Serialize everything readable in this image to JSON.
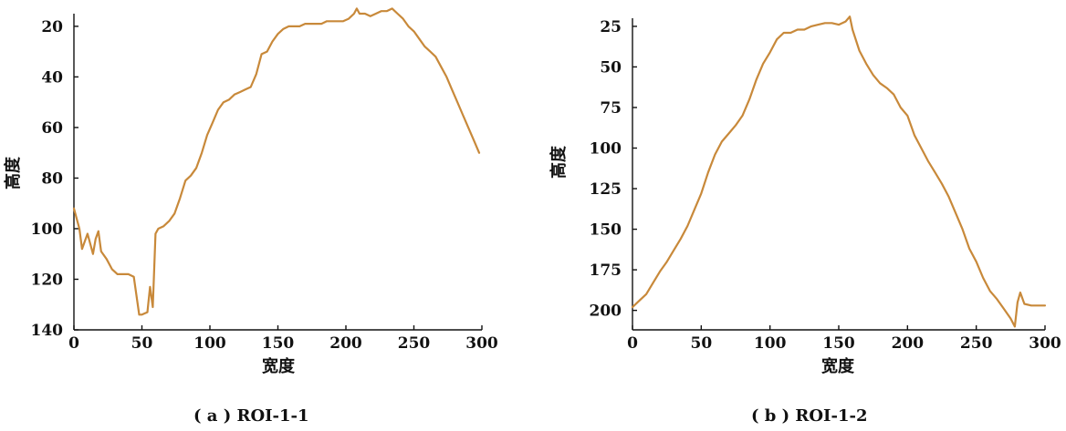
{
  "chart_data": [
    {
      "type": "line",
      "title": "",
      "caption": "( a ) ROI-1-1",
      "xlabel": "宽度",
      "ylabel": "高度",
      "xlim": [
        0,
        300
      ],
      "ylim": [
        140,
        15
      ],
      "y_inverted": true,
      "grid": false,
      "xticks": [
        0,
        50,
        100,
        150,
        200,
        250,
        300
      ],
      "yticks": [
        20,
        40,
        60,
        80,
        100,
        120,
        140
      ],
      "color": "#c8893a",
      "series": [
        {
          "x": [
            0,
            4,
            6,
            10,
            14,
            16,
            18,
            20,
            24,
            28,
            32,
            36,
            40,
            44,
            48,
            50,
            54,
            56,
            58,
            60,
            62,
            66,
            70,
            74,
            78,
            82,
            86,
            90,
            94,
            98,
            102,
            106,
            110,
            114,
            118,
            122,
            126,
            130,
            134,
            138,
            142,
            146,
            150,
            154,
            158,
            162,
            166,
            170,
            174,
            178,
            182,
            186,
            190,
            194,
            198,
            202,
            206,
            208,
            210,
            214,
            218,
            222,
            226,
            230,
            234,
            238,
            242,
            246,
            250,
            254,
            258,
            262,
            266,
            270,
            274,
            278,
            282,
            286,
            290,
            294,
            298
          ],
          "y": [
            92,
            100,
            108,
            102,
            110,
            104,
            101,
            109,
            112,
            116,
            118,
            118,
            118,
            119,
            134,
            134,
            133,
            123,
            131,
            102,
            100,
            99,
            97,
            94,
            88,
            81,
            79,
            76,
            70,
            63,
            58,
            53,
            50,
            49,
            47,
            46,
            45,
            44,
            39,
            31,
            30,
            26,
            23,
            21,
            20,
            20,
            20,
            19,
            19,
            19,
            19,
            18,
            18,
            18,
            18,
            17,
            15,
            13,
            15,
            15,
            16,
            15,
            14,
            14,
            13,
            15,
            17,
            20,
            22,
            25,
            28,
            30,
            32,
            36,
            40,
            45,
            50,
            55,
            60,
            65,
            70
          ]
        }
      ]
    },
    {
      "type": "line",
      "title": "",
      "caption": "( b ) ROI-1-2",
      "xlabel": "宽度",
      "ylabel": "高度",
      "xlim": [
        0,
        300
      ],
      "ylim": [
        212,
        20
      ],
      "y_inverted": true,
      "grid": false,
      "xticks": [
        0,
        50,
        100,
        150,
        200,
        250,
        300
      ],
      "yticks": [
        25,
        50,
        75,
        100,
        125,
        150,
        175,
        200
      ],
      "color": "#c8893a",
      "series": [
        {
          "x": [
            0,
            5,
            10,
            15,
            20,
            25,
            30,
            35,
            40,
            45,
            50,
            55,
            60,
            65,
            70,
            75,
            80,
            85,
            90,
            95,
            100,
            105,
            110,
            115,
            120,
            125,
            130,
            135,
            140,
            145,
            150,
            155,
            158,
            160,
            165,
            170,
            175,
            180,
            185,
            190,
            195,
            200,
            205,
            210,
            215,
            220,
            225,
            230,
            235,
            240,
            245,
            250,
            255,
            260,
            265,
            270,
            275,
            278,
            280,
            282,
            285,
            290,
            295,
            300
          ],
          "y": [
            198,
            194,
            190,
            183,
            176,
            170,
            163,
            156,
            148,
            138,
            128,
            115,
            104,
            96,
            91,
            86,
            80,
            70,
            58,
            48,
            41,
            33,
            29,
            29,
            27,
            27,
            25,
            24,
            23,
            23,
            24,
            22,
            19,
            27,
            40,
            48,
            55,
            60,
            63,
            67,
            75,
            80,
            92,
            100,
            108,
            115,
            122,
            130,
            140,
            150,
            162,
            170,
            180,
            188,
            193,
            199,
            205,
            210,
            195,
            189,
            196,
            197,
            197,
            197
          ]
        }
      ]
    }
  ]
}
